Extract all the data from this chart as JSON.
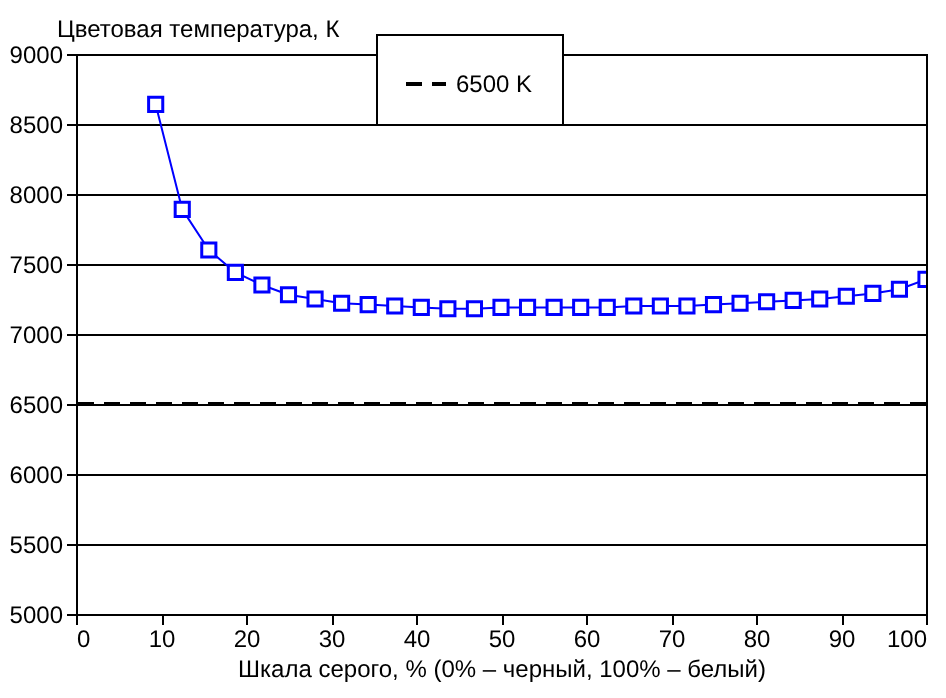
{
  "chart_data": {
    "type": "line",
    "ylabel": "Цветовая температура, К",
    "xlabel": "Шкала серого, % (0% – черный, 100% – белый)",
    "x": [
      9.375,
      12.5,
      15.625,
      18.75,
      21.875,
      25,
      28.125,
      31.25,
      34.375,
      37.5,
      40.625,
      43.75,
      46.875,
      50,
      53.125,
      56.25,
      59.375,
      62.5,
      65.625,
      68.75,
      71.875,
      75,
      78.125,
      81.25,
      84.375,
      87.5,
      90.625,
      93.75,
      96.875,
      100
    ],
    "series": [
      {
        "color": "#0000ff",
        "values": [
          8640,
          7890,
          7600,
          7440,
          7350,
          7280,
          7250,
          7220,
          7210,
          7200,
          7190,
          7180,
          7180,
          7190,
          7190,
          7190,
          7190,
          7190,
          7200,
          7200,
          7200,
          7210,
          7220,
          7230,
          7240,
          7250,
          7270,
          7290,
          7320,
          7390
        ]
      }
    ],
    "marker": "square",
    "line_style": "solid",
    "ref_lines": [
      {
        "axis": "y",
        "value": 6500,
        "label": "6500 K",
        "color": "#000000",
        "line_style": "dashed"
      }
    ],
    "xlim": [
      0,
      100
    ],
    "xticks": [
      0,
      10,
      20,
      30,
      40,
      50,
      60,
      70,
      80,
      90,
      100
    ],
    "ylim": [
      5000,
      9000
    ],
    "yticks": [
      5000,
      5500,
      6000,
      6500,
      7000,
      7500,
      8000,
      8500,
      9000
    ],
    "grid": "y",
    "legend": "top"
  }
}
